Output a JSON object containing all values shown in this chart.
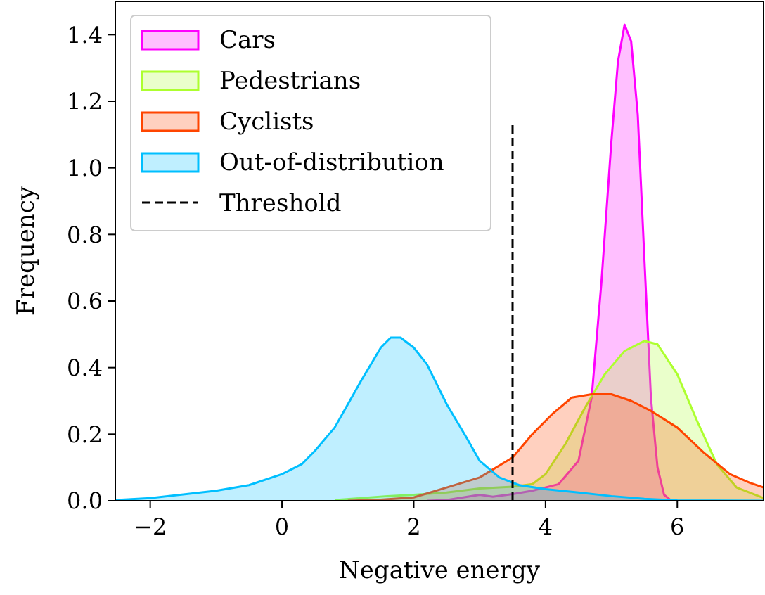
{
  "chart_data": {
    "type": "area",
    "xlabel": "Negative energy",
    "ylabel": "Frequency",
    "xlim": [
      -2.53,
      7.31
    ],
    "ylim": [
      0,
      1.5
    ],
    "xticks": [
      {
        "value": -2,
        "label": "−2"
      },
      0,
      2,
      4,
      6
    ],
    "yticks": [
      {
        "value": 0,
        "label": "0.0"
      },
      {
        "value": 0.2,
        "label": "0.2"
      },
      {
        "value": 0.4,
        "label": "0.4"
      },
      {
        "value": 0.6,
        "label": "0.6"
      },
      {
        "value": 0.8,
        "label": "0.8"
      },
      {
        "value": 1,
        "label": "1.0"
      },
      {
        "value": 1.2,
        "label": "1.2"
      },
      {
        "value": 1.4,
        "label": "1.4"
      }
    ],
    "grid": false,
    "legend": "top left",
    "series": [
      {
        "name": "Cars",
        "color": "#ff00ff",
        "x": [
          2.2,
          2.5,
          3.0,
          3.2,
          3.5,
          3.8,
          4.2,
          4.5,
          4.7,
          4.85,
          5.0,
          5.1,
          5.2,
          5.3,
          5.4,
          5.5,
          5.6,
          5.7,
          5.8,
          5.9,
          6.0
        ],
        "values": [
          0,
          0.002,
          0.018,
          0.012,
          0.02,
          0.03,
          0.05,
          0.12,
          0.31,
          0.66,
          1.08,
          1.32,
          1.43,
          1.38,
          1.16,
          0.73,
          0.31,
          0.1,
          0.018,
          0.002,
          0
        ]
      },
      {
        "name": "Pedestrians",
        "color": "#adff2f",
        "x": [
          0.8,
          1.2,
          1.6,
          2.0,
          2.5,
          3.0,
          3.5,
          3.8,
          4.0,
          4.3,
          4.6,
          4.9,
          5.2,
          5.5,
          5.7,
          6.0,
          6.3,
          6.6,
          6.9,
          7.31
        ],
        "values": [
          0.002,
          0.008,
          0.014,
          0.018,
          0.025,
          0.037,
          0.042,
          0.05,
          0.08,
          0.17,
          0.28,
          0.38,
          0.45,
          0.48,
          0.47,
          0.38,
          0.24,
          0.11,
          0.04,
          0.008
        ]
      },
      {
        "name": "Cyclists",
        "color": "#ff4500",
        "x": [
          1.0,
          1.5,
          2.0,
          2.5,
          3.0,
          3.5,
          3.8,
          4.1,
          4.4,
          4.7,
          5.0,
          5.3,
          5.6,
          6.0,
          6.4,
          6.8,
          7.1,
          7.31
        ],
        "values": [
          0,
          0.003,
          0.01,
          0.04,
          0.07,
          0.13,
          0.2,
          0.26,
          0.31,
          0.32,
          0.32,
          0.3,
          0.27,
          0.22,
          0.145,
          0.08,
          0.054,
          0.04
        ]
      },
      {
        "name": "Out-of-distribution",
        "color": "#00bfff",
        "x": [
          -2.53,
          -2,
          -1,
          -0.5,
          0,
          0.3,
          0.5,
          0.8,
          1.0,
          1.2,
          1.5,
          1.65,
          1.8,
          2.0,
          2.2,
          2.5,
          2.8,
          3.0,
          3.3,
          3.6,
          4.0,
          4.5,
          5.0,
          5.5,
          6.0,
          7.31
        ],
        "values": [
          0.002,
          0.008,
          0.03,
          0.047,
          0.08,
          0.11,
          0.15,
          0.22,
          0.29,
          0.36,
          0.46,
          0.49,
          0.49,
          0.46,
          0.41,
          0.29,
          0.19,
          0.12,
          0.07,
          0.047,
          0.035,
          0.025,
          0.014,
          0.006,
          0.001,
          0
        ]
      },
      {
        "name": "Threshold",
        "type": "line",
        "color": "#000000",
        "line_style": "dashed",
        "x": [
          3.5,
          3.5
        ],
        "values": [
          0,
          1.13
        ]
      }
    ]
  }
}
